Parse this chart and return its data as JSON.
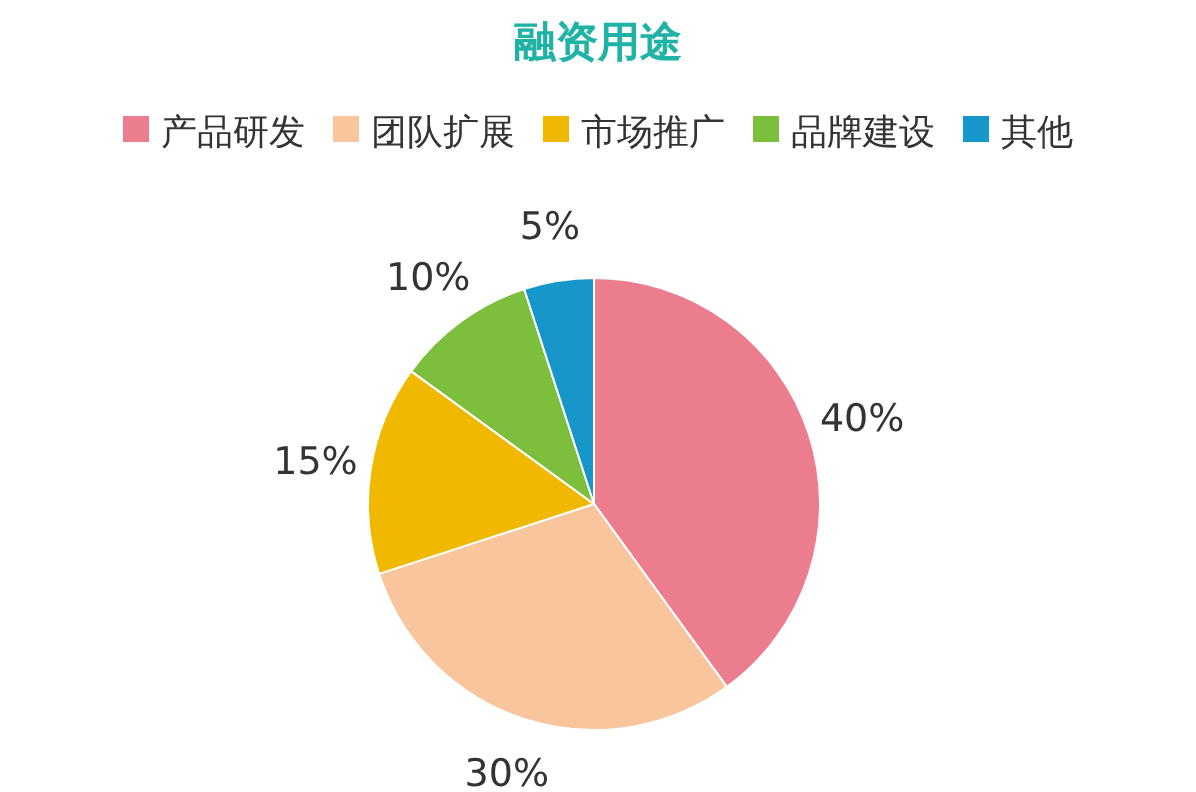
{
  "chart_data": {
    "type": "pie",
    "title": "融资用途",
    "categories": [
      "产品研发",
      "团队扩展",
      "市场推广",
      "品牌建设",
      "其他"
    ],
    "values": [
      40,
      30,
      15,
      10,
      5
    ],
    "value_labels": [
      "40%",
      "30%",
      "15%",
      "10%",
      "5%"
    ],
    "colors": [
      "#ec7d8e",
      "#f8c59c",
      "#f1b800",
      "#7bbf3d",
      "#1796c9"
    ],
    "legend": "top"
  }
}
